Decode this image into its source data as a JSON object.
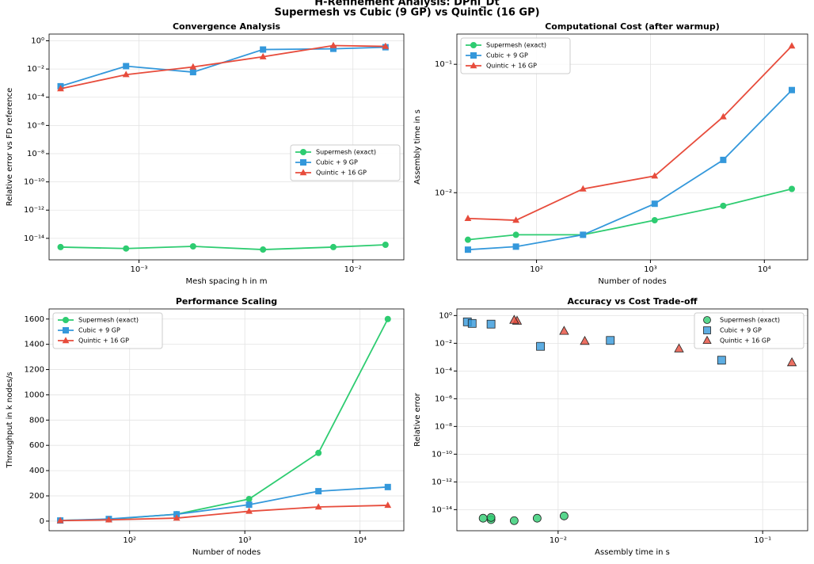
{
  "suptitle": [
    "H-Refinement Analysis: DPhi_Dt",
    "Supermesh vs Cubic (9 GP) vs Quintic (16 GP)"
  ],
  "chart_data": [
    {
      "type": "line",
      "title": "Convergence Analysis",
      "xlabel": "Mesh spacing h in m",
      "ylabel": "Relative error vs FD reference",
      "xscale": "log",
      "yscale": "log",
      "grid": true,
      "legend": "center right",
      "x": [
        0.00043,
        0.00087,
        0.00179,
        0.0038,
        0.0081,
        0.0142
      ],
      "xlim": [
        0.00038,
        0.0173
      ],
      "ylim": [
        3e-16,
        3
      ],
      "xticks": [
        {
          "value": 0.001,
          "label": "10⁻³"
        },
        {
          "value": 0.01,
          "label": "10⁻²"
        }
      ],
      "yticks": [
        {
          "value": 1e-14,
          "label": "10⁻¹⁴"
        },
        {
          "value": 1e-12,
          "label": "10⁻¹²"
        },
        {
          "value": 1e-10,
          "label": "10⁻¹⁰"
        },
        {
          "value": 1e-08,
          "label": "10⁻⁸"
        },
        {
          "value": 1e-06,
          "label": "10⁻⁶"
        },
        {
          "value": 0.0001,
          "label": "10⁻⁴"
        },
        {
          "value": 0.01,
          "label": "10⁻²"
        },
        {
          "value": 1,
          "label": "10⁰"
        }
      ],
      "series": [
        {
          "name": "Supermesh (exact)",
          "color": "#2ecc71",
          "marker": "o",
          "values": [
            2.4e-15,
            1.9e-15,
            2.7e-15,
            1.6e-15,
            2.4e-15,
            3.5e-15
          ]
        },
        {
          "name": "Cubic + 9 GP",
          "color": "#3498db",
          "marker": "s",
          "values": [
            0.0006,
            0.016,
            0.006,
            0.24,
            0.27,
            0.35
          ]
        },
        {
          "name": "Quintic + 16 GP",
          "color": "#e74c3c",
          "marker": "^",
          "values": [
            0.0004,
            0.004,
            0.014,
            0.074,
            0.46,
            0.4
          ]
        }
      ]
    },
    {
      "type": "line",
      "title": "Computational Cost (after warmup)",
      "xlabel": "Number of nodes",
      "ylabel": "Assembly time in s",
      "xscale": "log",
      "yscale": "log",
      "grid": true,
      "legend": "upper left",
      "x": [
        25,
        66,
        256,
        1089,
        4356,
        17424
      ],
      "xlim": [
        20,
        24000
      ],
      "ylim": [
        0.003,
        0.172
      ],
      "xticks": [
        {
          "value": 100,
          "label": "10²"
        },
        {
          "value": 1000,
          "label": "10³"
        },
        {
          "value": 10000,
          "label": "10⁴"
        }
      ],
      "yticks": [
        {
          "value": 0.01,
          "label": "10⁻²"
        },
        {
          "value": 0.1,
          "label": "10⁻¹"
        }
      ],
      "series": [
        {
          "name": "Supermesh (exact)",
          "color": "#2ecc71",
          "marker": "o",
          "values": [
            0.0043,
            0.0047,
            0.0047,
            0.0061,
            0.0079,
            0.0107
          ]
        },
        {
          "name": "Cubic + 9 GP",
          "color": "#3498db",
          "marker": "s",
          "values": [
            0.0036,
            0.0038,
            0.0047,
            0.0082,
            0.018,
            0.063
          ]
        },
        {
          "name": "Quintic + 16 GP",
          "color": "#e74c3c",
          "marker": "^",
          "values": [
            0.0063,
            0.0061,
            0.0107,
            0.0135,
            0.039,
            0.139
          ]
        }
      ]
    },
    {
      "type": "line",
      "title": "Performance Scaling",
      "xlabel": "Number of nodes",
      "ylabel": "Throughput in k nodes/s",
      "xscale": "log",
      "yscale": "linear",
      "grid": true,
      "legend": "upper left",
      "x": [
        25,
        66,
        256,
        1089,
        4356,
        17424
      ],
      "xlim": [
        20,
        24000
      ],
      "ylim": [
        -76,
        1680
      ],
      "xticks": [
        {
          "value": 100,
          "label": "10²"
        },
        {
          "value": 1000,
          "label": "10³"
        },
        {
          "value": 10000,
          "label": "10⁴"
        }
      ],
      "yticks": [
        0,
        200,
        400,
        600,
        800,
        1000,
        1200,
        1400,
        1600
      ],
      "series": [
        {
          "name": "Supermesh (exact)",
          "color": "#2ecc71",
          "marker": "o",
          "values": [
            5,
            14,
            55,
            175,
            540,
            1600
          ]
        },
        {
          "name": "Cubic + 9 GP",
          "color": "#3498db",
          "marker": "s",
          "values": [
            5,
            17,
            54,
            130,
            237,
            270
          ]
        },
        {
          "name": "Quintic + 16 GP",
          "color": "#e74c3c",
          "marker": "^",
          "values": [
            4,
            10,
            24,
            78,
            112,
            125
          ]
        }
      ]
    },
    {
      "type": "scatter",
      "title": "Accuracy vs Cost Trade-off",
      "xlabel": "Assembly time in s",
      "ylabel": "Relative error",
      "xscale": "log",
      "yscale": "log",
      "grid": true,
      "legend": "upper right",
      "xlim": [
        0.0032,
        0.166
      ],
      "ylim": [
        3e-16,
        3
      ],
      "xticks": [
        {
          "value": 0.01,
          "label": "10⁻²"
        },
        {
          "value": 0.1,
          "label": "10⁻¹"
        }
      ],
      "yticks": [
        {
          "value": 1e-14,
          "label": "10⁻¹⁴"
        },
        {
          "value": 1e-12,
          "label": "10⁻¹²"
        },
        {
          "value": 1e-10,
          "label": "10⁻¹⁰"
        },
        {
          "value": 1e-08,
          "label": "10⁻⁸"
        },
        {
          "value": 1e-06,
          "label": "10⁻⁶"
        },
        {
          "value": 0.0001,
          "label": "10⁻⁴"
        },
        {
          "value": 0.01,
          "label": "10⁻²"
        },
        {
          "value": 1,
          "label": "10⁰"
        }
      ],
      "series": [
        {
          "name": "Supermesh (exact)",
          "color": "#2ecc71",
          "marker": "o",
          "x": [
            0.0043,
            0.0047,
            0.0047,
            0.0061,
            0.0079,
            0.0107
          ],
          "values": [
            2.4e-15,
            1.9e-15,
            2.7e-15,
            1.6e-15,
            2.4e-15,
            3.5e-15
          ]
        },
        {
          "name": "Cubic + 9 GP",
          "color": "#3498db",
          "marker": "s",
          "x": [
            0.0036,
            0.0038,
            0.0047,
            0.0082,
            0.018,
            0.063
          ],
          "values": [
            0.35,
            0.27,
            0.24,
            0.006,
            0.016,
            0.0006
          ]
        },
        {
          "name": "Quintic + 16 GP",
          "color": "#e74c3c",
          "marker": "^",
          "x": [
            0.0063,
            0.0061,
            0.0107,
            0.0135,
            0.039,
            0.139
          ],
          "values": [
            0.4,
            0.46,
            0.074,
            0.014,
            0.004,
            0.0004
          ]
        }
      ]
    }
  ]
}
